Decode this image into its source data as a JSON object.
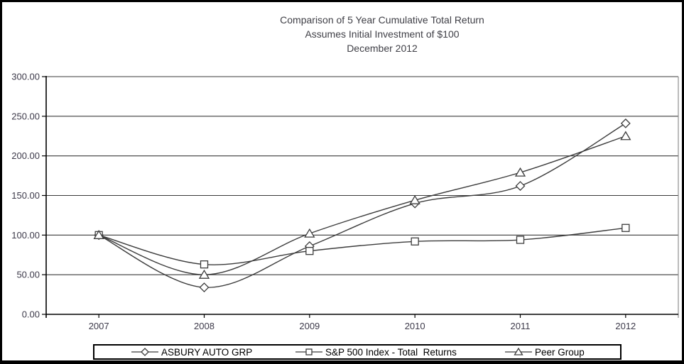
{
  "chart_data": {
    "type": "line",
    "title": "Comparison of 5 Year Cumulative Total Return - Assumes Initial Investment of $100 - December 2012",
    "title_lines": [
      "Comparison of 5 Year Cumulative Total Return",
      "Assumes Initial Investment of $100",
      "December 2012"
    ],
    "categories": [
      "2007",
      "2008",
      "2009",
      "2010",
      "2011",
      "2012"
    ],
    "xlabel": "",
    "ylabel": "",
    "ylim": [
      0,
      300
    ],
    "y_step": 50,
    "y_tick_labels": [
      "300.00",
      "250.00",
      "200.00",
      "150.00",
      "100.00",
      "50.00",
      "0.00"
    ],
    "grid": true,
    "line_smoothing": true,
    "legend_position": "bottom",
    "series": [
      {
        "name": "ASBURY AUTO GRP",
        "marker": "diamond",
        "values": [
          100,
          34,
          86,
          140,
          162,
          241
        ]
      },
      {
        "name": "S&P 500 Index - Total  Returns",
        "marker": "square",
        "values": [
          100,
          63,
          80,
          92,
          94,
          109
        ]
      },
      {
        "name": "Peer Group",
        "marker": "triangle",
        "values": [
          100,
          50,
          102,
          144,
          179,
          225
        ]
      }
    ],
    "colors": {
      "series_line": "#3c3c3c",
      "marker_fill": "#ffffff",
      "grid_line": "#3a3a3a",
      "plot_border": "#8e8e8e",
      "axis_line": "#000000",
      "axis_text": "#3d3a4a",
      "title_text": "#3f3f46",
      "legend_text": "#000000",
      "legend_border": "#000000",
      "background": "#ffffff",
      "frame_border": "#000000"
    }
  }
}
